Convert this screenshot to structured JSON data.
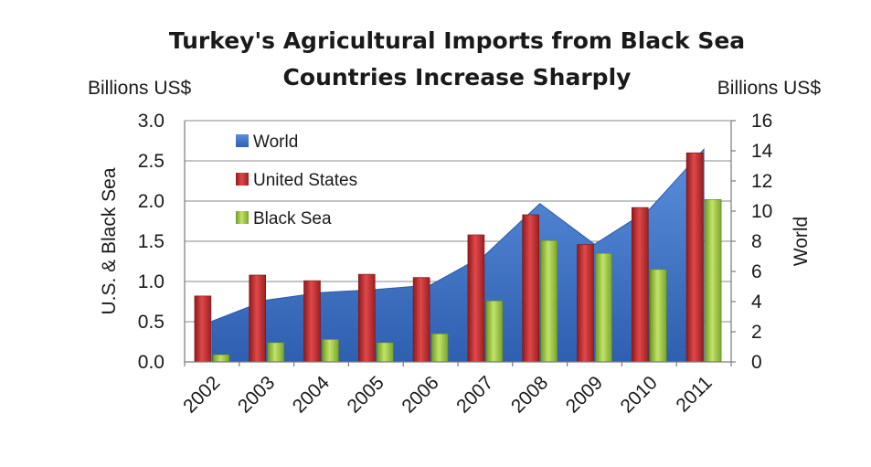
{
  "chart_data": {
    "type": "bar",
    "title_lines": [
      "Turkey's Agricultural Imports from Black Sea",
      "Countries Increase Sharply"
    ],
    "y_left_unit": "Billions US$",
    "y_right_unit": "Billions US$",
    "y_left_label": "U.S. & Black Sea",
    "y_right_label": "World",
    "y_left_lim": [
      0,
      3.0
    ],
    "y_left_ticks": [
      "0.0",
      "0.5",
      "1.0",
      "1.5",
      "2.0",
      "2.5",
      "3.0"
    ],
    "y_right_lim": [
      0,
      16
    ],
    "y_right_ticks": [
      "0",
      "2",
      "4",
      "6",
      "8",
      "10",
      "12",
      "14",
      "16"
    ],
    "categories": [
      "2002",
      "2003",
      "2004",
      "2005",
      "2006",
      "2007",
      "2008",
      "2009",
      "2010",
      "2011"
    ],
    "grid": true,
    "legend_position": "top-left inside",
    "series": [
      {
        "name": "World",
        "kind": "area",
        "axis": "right",
        "color": "#3f74c8",
        "values": [
          2.7,
          4.1,
          4.6,
          4.8,
          5.1,
          7.1,
          10.5,
          7.8,
          10.1,
          14.1
        ]
      },
      {
        "name": "United States",
        "kind": "bar",
        "axis": "left",
        "color": "#c0282a",
        "values": [
          0.82,
          1.08,
          1.01,
          1.09,
          1.05,
          1.58,
          1.83,
          1.46,
          1.92,
          2.6
        ]
      },
      {
        "name": "Black Sea",
        "kind": "bar",
        "axis": "left",
        "color": "#93c13b",
        "values": [
          0.09,
          0.24,
          0.28,
          0.24,
          0.35,
          0.76,
          1.51,
          1.35,
          1.15,
          2.02
        ]
      }
    ]
  }
}
